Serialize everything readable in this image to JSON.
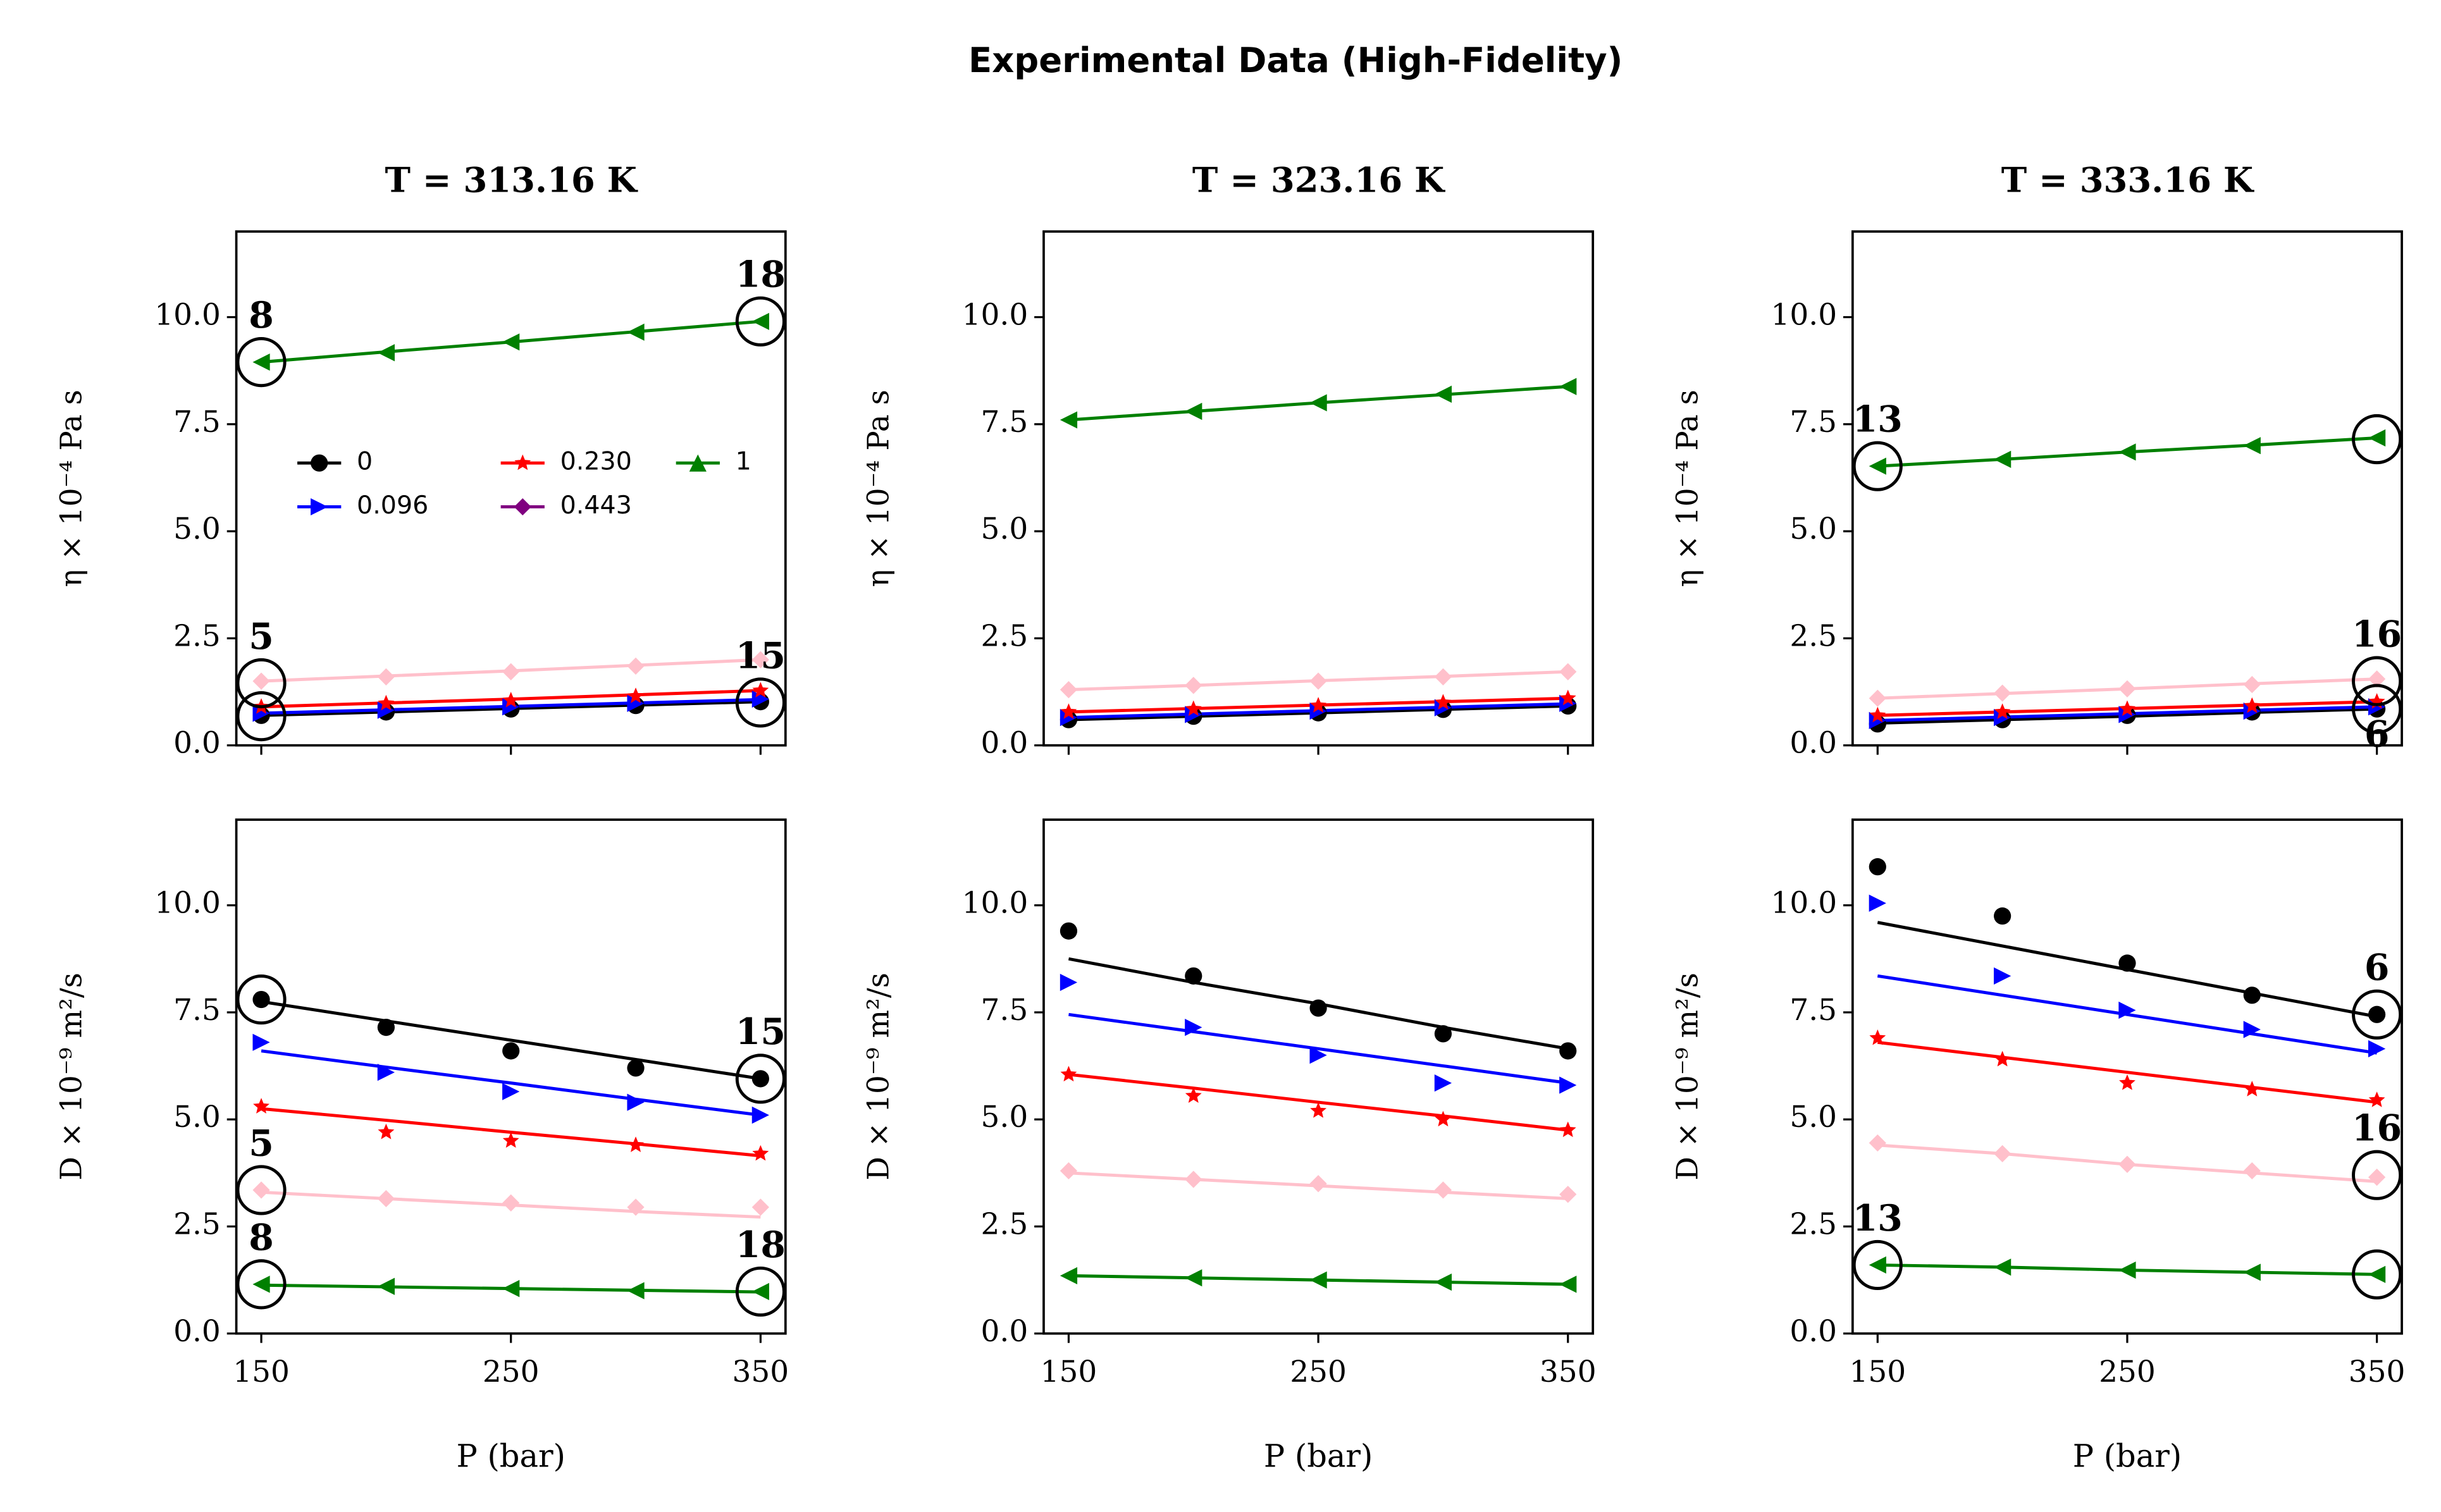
{
  "title": "Experimental Data (High-Fidelity)",
  "chart_data": [
    {
      "type": "line",
      "title": "T = 313.16 K",
      "ylabel": "η × 10⁻⁴ Pa s",
      "x": [
        150,
        200,
        250,
        300,
        350
      ],
      "xlim": [
        140,
        360
      ],
      "xticks": [
        150,
        250,
        350
      ],
      "xtick_labels": false,
      "ylim": [
        0,
        12
      ],
      "yticks": [
        {
          "value": 0,
          "label": "0.0"
        },
        2.5,
        {
          "value": 5,
          "label": "5.0"
        },
        7.5,
        {
          "value": 10,
          "label": "10.0"
        }
      ],
      "legend": true,
      "legend_loc": "center left",
      "series": [
        {
          "name": "0",
          "color": "#000000",
          "marker": "o",
          "values": [
            0.7,
            0.78,
            0.85,
            0.93,
            1.02
          ],
          "fit": [
            0.7,
            0.78,
            0.86,
            0.94,
            1.02
          ]
        },
        {
          "name": "0.096",
          "color": "#0000ff",
          "marker": ">",
          "values": [
            0.75,
            0.82,
            0.9,
            0.98,
            1.08
          ],
          "fit": [
            0.75,
            0.83,
            0.91,
            0.99,
            1.07
          ]
        },
        {
          "name": "0.230",
          "color": "#ff0000",
          "marker": "*",
          "values": [
            0.9,
            0.98,
            1.05,
            1.15,
            1.28
          ],
          "fit": [
            0.9,
            0.99,
            1.08,
            1.18,
            1.28
          ]
        },
        {
          "name": "0.443",
          "color": "#ffc0cb",
          "legend_color": "#800080",
          "marker": "D",
          "values": [
            1.5,
            1.6,
            1.72,
            1.85,
            2.0
          ],
          "fit": [
            1.5,
            1.62,
            1.74,
            1.87,
            2.0
          ]
        },
        {
          "name": "1",
          "color": "#008000",
          "marker": "<",
          "legend_marker": "^",
          "values": [
            8.95,
            9.17,
            9.42,
            9.65,
            9.9
          ],
          "fit": [
            8.95,
            9.19,
            9.42,
            9.66,
            9.9
          ]
        }
      ],
      "annotations": [
        {
          "label": "8",
          "x": 150,
          "y": 8.95
        },
        {
          "label": "18",
          "x": 350,
          "y": 9.9
        },
        {
          "label": "5",
          "x": 150,
          "y": 1.45
        },
        {
          "x": 150,
          "y": 0.68
        },
        {
          "label": "15",
          "x": 350,
          "y": 1.0
        }
      ]
    },
    {
      "type": "line",
      "title": "T = 323.16 K",
      "ylabel": "η × 10⁻⁴ Pa s",
      "x": [
        150,
        200,
        250,
        300,
        350
      ],
      "xlim": [
        140,
        360
      ],
      "xticks": [
        150,
        250,
        350
      ],
      "xtick_labels": false,
      "ylim": [
        0,
        12
      ],
      "yticks": [
        {
          "value": 0,
          "label": "0.0"
        },
        2.5,
        {
          "value": 5,
          "label": "5.0"
        },
        7.5,
        {
          "value": 10,
          "label": "10.0"
        }
      ],
      "series": [
        {
          "name": "0",
          "color": "#000000",
          "marker": "o",
          "values": [
            0.6,
            0.68,
            0.76,
            0.84,
            0.92
          ],
          "fit": [
            0.6,
            0.68,
            0.76,
            0.84,
            0.92
          ]
        },
        {
          "name": "0.096",
          "color": "#0000ff",
          "marker": ">",
          "values": [
            0.65,
            0.72,
            0.8,
            0.88,
            0.98
          ],
          "fit": [
            0.65,
            0.73,
            0.81,
            0.89,
            0.97
          ]
        },
        {
          "name": "0.230",
          "color": "#ff0000",
          "marker": "*",
          "values": [
            0.78,
            0.85,
            0.93,
            1.0,
            1.1
          ],
          "fit": [
            0.78,
            0.86,
            0.94,
            1.02,
            1.1
          ]
        },
        {
          "name": "0.443",
          "color": "#ffc0cb",
          "marker": "D",
          "values": [
            1.3,
            1.4,
            1.5,
            1.6,
            1.72
          ],
          "fit": [
            1.3,
            1.4,
            1.51,
            1.61,
            1.72
          ]
        },
        {
          "name": "1",
          "color": "#008000",
          "marker": "<",
          "values": [
            7.6,
            7.8,
            8.0,
            8.2,
            8.38
          ],
          "fit": [
            7.6,
            7.8,
            8.0,
            8.19,
            8.38
          ]
        }
      ]
    },
    {
      "type": "line",
      "title": "T = 333.16 K",
      "ylabel": "η × 10⁻⁴ Pa s",
      "x": [
        150,
        200,
        250,
        300,
        350
      ],
      "xlim": [
        140,
        360
      ],
      "xticks": [
        150,
        250,
        350
      ],
      "xtick_labels": false,
      "ylim": [
        0,
        12
      ],
      "yticks": [
        {
          "value": 0,
          "label": "0.0"
        },
        2.5,
        {
          "value": 5,
          "label": "5.0"
        },
        7.5,
        {
          "value": 10,
          "label": "10.0"
        }
      ],
      "series": [
        {
          "name": "0",
          "color": "#000000",
          "marker": "o",
          "values": [
            0.5,
            0.6,
            0.7,
            0.78,
            0.85
          ],
          "fit": [
            0.52,
            0.6,
            0.68,
            0.77,
            0.85
          ]
        },
        {
          "name": "0.096",
          "color": "#0000ff",
          "marker": ">",
          "values": [
            0.58,
            0.65,
            0.72,
            0.8,
            0.9
          ],
          "fit": [
            0.58,
            0.66,
            0.74,
            0.82,
            0.9
          ]
        },
        {
          "name": "0.230",
          "color": "#ff0000",
          "marker": "*",
          "values": [
            0.7,
            0.78,
            0.85,
            0.92,
            1.02
          ],
          "fit": [
            0.7,
            0.78,
            0.86,
            0.94,
            1.02
          ]
        },
        {
          "name": "0.443",
          "color": "#ffc0cb",
          "marker": "D",
          "values": [
            1.1,
            1.22,
            1.32,
            1.42,
            1.55
          ],
          "fit": [
            1.1,
            1.21,
            1.32,
            1.44,
            1.55
          ]
        },
        {
          "name": "1",
          "color": "#008000",
          "marker": "<",
          "values": [
            6.52,
            6.68,
            6.85,
            7.0,
            7.18
          ],
          "fit": [
            6.52,
            6.68,
            6.85,
            7.01,
            7.18
          ]
        }
      ],
      "annotations": [
        {
          "label": "13",
          "x": 150,
          "y": 6.52
        },
        {
          "x": 350,
          "y": 7.15
        },
        {
          "label": "16",
          "x": 350,
          "y": 1.5
        },
        {
          "label": "6",
          "x": 350,
          "y": 0.85,
          "pos": "below"
        }
      ]
    },
    {
      "type": "line",
      "ylabel": "D × 10⁻⁹ m²/s",
      "xlabel": "P (bar)",
      "x": [
        150,
        200,
        250,
        300,
        350
      ],
      "xlim": [
        140,
        360
      ],
      "xticks": [
        150,
        250,
        350
      ],
      "xtick_labels": true,
      "ylim": [
        0,
        12
      ],
      "yticks": [
        {
          "value": 0,
          "label": "0.0"
        },
        2.5,
        {
          "value": 5,
          "label": "5.0"
        },
        7.5,
        {
          "value": 10,
          "label": "10.0"
        }
      ],
      "series": [
        {
          "name": "0",
          "color": "#000000",
          "marker": "o",
          "values": [
            7.8,
            7.15,
            6.6,
            6.2,
            5.95
          ],
          "fit": [
            7.75,
            7.3,
            6.85,
            6.4,
            5.95
          ]
        },
        {
          "name": "0.096",
          "color": "#0000ff",
          "marker": ">",
          "values": [
            6.8,
            6.1,
            5.65,
            5.4,
            5.1
          ],
          "fit": [
            6.6,
            6.22,
            5.85,
            5.47,
            5.1
          ]
        },
        {
          "name": "0.230",
          "color": "#ff0000",
          "marker": "*",
          "values": [
            5.3,
            4.7,
            4.5,
            4.4,
            4.2
          ],
          "fit": [
            5.25,
            4.98,
            4.7,
            4.43,
            4.15
          ]
        },
        {
          "name": "0.443",
          "color": "#ffc0cb",
          "marker": "D",
          "values": [
            3.35,
            3.15,
            3.05,
            2.95,
            2.95
          ],
          "fit": [
            3.3,
            3.15,
            3.0,
            2.85,
            2.72
          ]
        },
        {
          "name": "1",
          "color": "#008000",
          "marker": "<",
          "values": [
            1.15,
            1.1,
            1.05,
            1.0,
            0.98
          ],
          "fit": [
            1.13,
            1.09,
            1.05,
            1.01,
            0.97
          ]
        }
      ],
      "annotations": [
        {
          "x": 150,
          "y": 7.8
        },
        {
          "label": "5",
          "x": 150,
          "y": 3.35
        },
        {
          "label": "8",
          "x": 150,
          "y": 1.15
        },
        {
          "label": "15",
          "x": 350,
          "y": 5.95
        },
        {
          "label": "18",
          "x": 350,
          "y": 0.98
        }
      ]
    },
    {
      "type": "line",
      "ylabel": "D × 10⁻⁹ m²/s",
      "xlabel": "P (bar)",
      "x": [
        150,
        200,
        250,
        300,
        350
      ],
      "xlim": [
        140,
        360
      ],
      "xticks": [
        150,
        250,
        350
      ],
      "xtick_labels": true,
      "ylim": [
        0,
        12
      ],
      "yticks": [
        {
          "value": 0,
          "label": "0.0"
        },
        2.5,
        {
          "value": 5,
          "label": "5.0"
        },
        7.5,
        {
          "value": 10,
          "label": "10.0"
        }
      ],
      "series": [
        {
          "name": "0",
          "color": "#000000",
          "marker": "o",
          "values": [
            9.4,
            8.35,
            7.6,
            7.0,
            6.6
          ],
          "fit": [
            8.75,
            8.2,
            7.7,
            7.15,
            6.65
          ]
        },
        {
          "name": "0.096",
          "color": "#0000ff",
          "marker": ">",
          "values": [
            8.2,
            7.15,
            6.5,
            5.85,
            5.8
          ],
          "fit": [
            7.45,
            7.05,
            6.65,
            6.25,
            5.85
          ]
        },
        {
          "name": "0.230",
          "color": "#ff0000",
          "marker": "*",
          "values": [
            6.05,
            5.55,
            5.2,
            5.0,
            4.75
          ],
          "fit": [
            6.05,
            5.73,
            5.4,
            5.08,
            4.75
          ]
        },
        {
          "name": "0.443",
          "color": "#ffc0cb",
          "marker": "D",
          "values": [
            3.8,
            3.6,
            3.5,
            3.35,
            3.25
          ],
          "fit": [
            3.75,
            3.6,
            3.45,
            3.3,
            3.15
          ]
        },
        {
          "name": "1",
          "color": "#008000",
          "marker": "<",
          "values": [
            1.35,
            1.3,
            1.25,
            1.2,
            1.15
          ],
          "fit": [
            1.35,
            1.3,
            1.25,
            1.2,
            1.15
          ]
        }
      ]
    },
    {
      "type": "line",
      "ylabel": "D × 10⁻⁹ m²/s",
      "xlabel": "P (bar)",
      "x": [
        150,
        200,
        250,
        300,
        350
      ],
      "xlim": [
        140,
        360
      ],
      "xticks": [
        150,
        250,
        350
      ],
      "xtick_labels": true,
      "ylim": [
        0,
        12
      ],
      "yticks": [
        {
          "value": 0,
          "label": "0.0"
        },
        2.5,
        {
          "value": 5,
          "label": "5.0"
        },
        7.5,
        {
          "value": 10,
          "label": "10.0"
        }
      ],
      "series": [
        {
          "name": "0",
          "color": "#000000",
          "marker": "o",
          "values": [
            10.9,
            9.75,
            8.65,
            7.9,
            7.45
          ],
          "fit": [
            9.6,
            9.05,
            8.5,
            7.95,
            7.4
          ]
        },
        {
          "name": "0.096",
          "color": "#0000ff",
          "marker": ">",
          "values": [
            10.05,
            8.35,
            7.55,
            7.1,
            6.65
          ],
          "fit": [
            8.35,
            7.9,
            7.45,
            7.0,
            6.55
          ]
        },
        {
          "name": "0.230",
          "color": "#ff0000",
          "marker": "*",
          "values": [
            6.9,
            6.4,
            5.85,
            5.7,
            5.45
          ],
          "fit": [
            6.8,
            6.45,
            6.1,
            5.75,
            5.4
          ]
        },
        {
          "name": "0.443",
          "color": "#ffc0cb",
          "marker": "D",
          "values": [
            4.45,
            4.2,
            3.95,
            3.8,
            3.65
          ],
          "fit": [
            4.4,
            4.2,
            3.95,
            3.75,
            3.55
          ]
        },
        {
          "name": "1",
          "color": "#008000",
          "marker": "<",
          "values": [
            1.6,
            1.55,
            1.48,
            1.43,
            1.38
          ],
          "fit": [
            1.6,
            1.55,
            1.48,
            1.43,
            1.38
          ]
        }
      ],
      "annotations": [
        {
          "label": "6",
          "x": 350,
          "y": 7.45
        },
        {
          "label": "16",
          "x": 350,
          "y": 3.7
        },
        {
          "label": "13",
          "x": 150,
          "y": 1.6
        },
        {
          "x": 350,
          "y": 1.38
        }
      ]
    }
  ]
}
